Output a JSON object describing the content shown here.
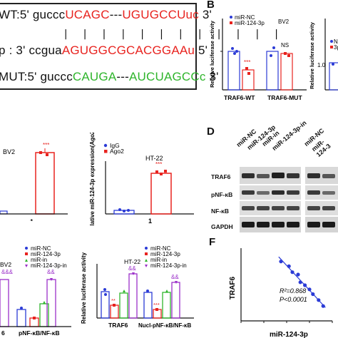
{
  "panel_labels": {
    "b": "B",
    "d": "D",
    "f": "F"
  },
  "sequences": {
    "wt": {
      "prefix": "WT:5' guccc",
      "red1": "UCAGC",
      "mid": "---",
      "red2": "UGUGCCUuc",
      "suffix": " 3'"
    },
    "mir": {
      "prefix": "p : 3' ccgua",
      "red1": "AGUGGCG",
      "red2": "CACGGAAu",
      "suffix": " 5'"
    },
    "mut": {
      "prefix": "MUT:5' guccc",
      "green1": "CAUGA",
      "mid": "---",
      "green2": "AUCUAGCCc",
      "suffix": " 3'"
    },
    "pair_bars": "| | | |  | | | | | | | |"
  },
  "panelB": {
    "legend": [
      "miR-NC",
      "miR-124-3p"
    ],
    "cell": "BV2",
    "ylabel": "Relative luciferase activity",
    "ticks": [
      "1.5",
      "1.0",
      "0.5",
      "0.0"
    ],
    "groups": [
      "TRAF6-WT",
      "TRAF6-MUT"
    ],
    "sig": [
      "***",
      "NS"
    ]
  },
  "panelB2": {
    "legend": [
      "NC",
      "3p"
    ],
    "ylabel": "Relative luciferase activity",
    "tick": "1.0"
  },
  "panelC": {
    "cell": "BV2",
    "sig": "***",
    "xtick": "1"
  },
  "panelC2": {
    "legend": [
      "IgG",
      "Ago2"
    ],
    "cell": "HT-22",
    "ylabel": "Relative miR-124-3p expression(Ago2/IgG)",
    "sig": "***",
    "xtick": "1"
  },
  "panelD": {
    "lanes": [
      "miR-NC",
      "miR-124-3p",
      "miR-in",
      "miR-124-3p-in"
    ],
    "lanes_right": [
      "miR-NC",
      "miR-124-3"
    ],
    "rows": [
      "TRAF6",
      "pNF-κB",
      "NF-κB",
      "GAPDH"
    ]
  },
  "panelE": {
    "cell": "BV2",
    "legend": [
      "miR-NC",
      "miR-124-3p",
      "miR-in",
      "miR-124-3p-in"
    ],
    "sig": [
      "&&&",
      "&&"
    ],
    "xlabels": [
      "6",
      "pNF-κB/NF-κB"
    ]
  },
  "panelE2": {
    "cell": "HT-22",
    "ylabel": "Relative luciferase activity",
    "ticks": [
      "2.0",
      "1.5",
      "1.0",
      "0.5",
      "0.0"
    ],
    "legend": [
      "miR-NC",
      "miR-124-3p",
      "miR-in",
      "miR-124-3p-in"
    ],
    "sig": [
      "&&",
      "&&",
      "**",
      "***"
    ],
    "xlabels": [
      "TRAF6",
      "Nucl-pNF-κB/NF-κB"
    ]
  },
  "panelF": {
    "ylabel": "TRAF6",
    "xlabel": "miR-124-3p",
    "r2": "R²=0.868",
    "p": "P<0.0001",
    "xticks": [
      "0.0",
      "0.2",
      "0.4",
      "0.6",
      "0.8"
    ]
  },
  "colors": {
    "nc": "#2b3bd6",
    "mir": "#e8231f",
    "in": "#2fb52c",
    "mirin": "#9b2fc9"
  },
  "chart_data": [
    {
      "type": "scatter",
      "title": "",
      "xlabel": "miR-124-3p",
      "ylabel": "TRAF6",
      "x": [
        0.35,
        0.42,
        0.45,
        0.5,
        0.52,
        0.56,
        0.6,
        0.63,
        0.68,
        0.72
      ],
      "y": [
        1.8,
        1.72,
        1.62,
        1.58,
        1.45,
        1.4,
        1.33,
        1.25,
        1.15,
        1.05
      ],
      "xlim": [
        0.0,
        0.8
      ],
      "annotations": [
        "R²=0.868",
        "P<0.0001"
      ]
    }
  ]
}
